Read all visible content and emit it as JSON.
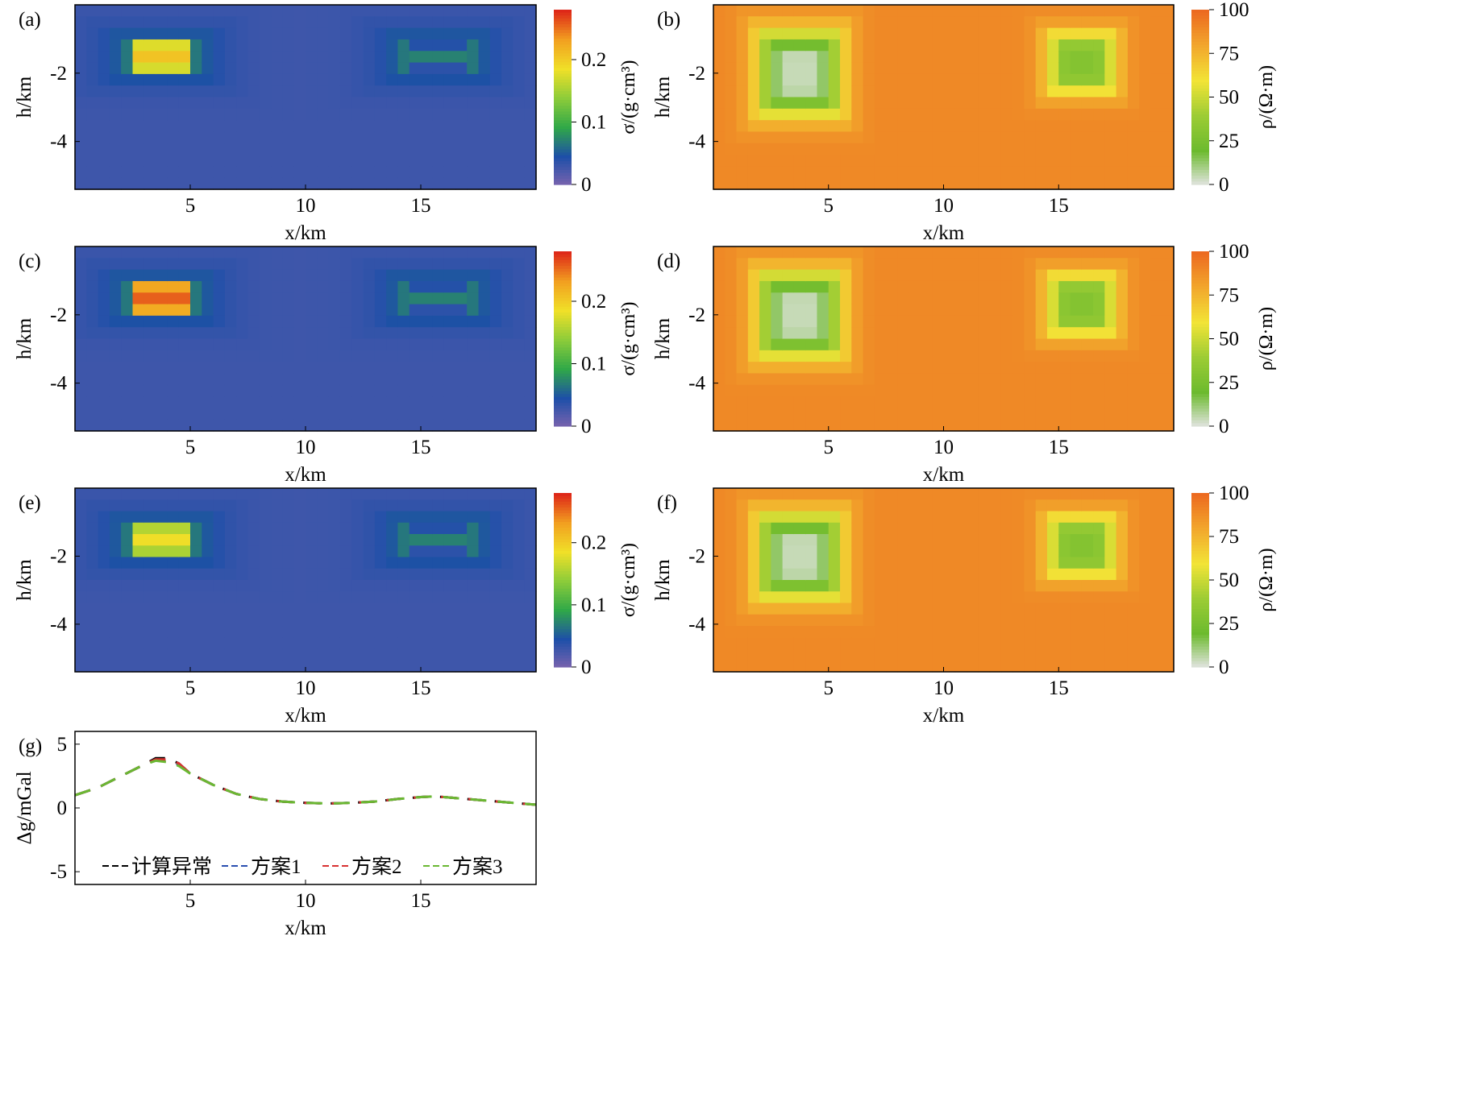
{
  "chart_data": [
    {
      "panel": "(a)",
      "type": "heatmap",
      "quantity": "density",
      "xlabel": "x/km",
      "ylabel": "h/km",
      "xlim": [
        0,
        20
      ],
      "ylim": [
        -5.4,
        0
      ],
      "xticks": [
        "5",
        "10",
        "15"
      ],
      "yticks": [
        "-2",
        "-4"
      ],
      "colorbar": {
        "label": "σ/(g·cm³)",
        "ticks": [
          "0",
          "0.1",
          "0.2"
        ],
        "range": [
          0,
          0.28
        ],
        "colors": [
          "#7a63ae",
          "#1d4fa8",
          "#30a848",
          "#8ccc3a",
          "#f0e028",
          "#f2a020",
          "#de2818"
        ]
      },
      "background": 0.03,
      "anomalies": [
        {
          "x": [
            2.5,
            5.0
          ],
          "z": [
            -1.9,
            -1.1
          ],
          "peak": 0.21,
          "halo": 0.05
        },
        {
          "x": [
            14.5,
            17.0
          ],
          "z": [
            -1.9,
            -1.1
          ],
          "peak": 0.075,
          "halo": 0.05
        }
      ]
    },
    {
      "panel": "(b)",
      "type": "heatmap",
      "quantity": "resistivity",
      "xlabel": "x/km",
      "ylabel": "h/km",
      "xlim": [
        0,
        20
      ],
      "ylim": [
        -5.4,
        0
      ],
      "xticks": [
        "5",
        "10",
        "15"
      ],
      "yticks": [
        "-2",
        "-4"
      ],
      "colorbar": {
        "label": "ρ/(Ω·m)",
        "ticks": [
          "0",
          "25",
          "50",
          "75",
          "100"
        ],
        "range": [
          0,
          100
        ],
        "colors": [
          "#e4e4e4",
          "#6cba2e",
          "#9ccc34",
          "#f2e436",
          "#f2a72c",
          "#ec6a20"
        ]
      },
      "background": 90,
      "anomalies": [
        {
          "x": [
            2.0,
            5.5
          ],
          "z": [
            -3.2,
            -0.8
          ],
          "low": 5
        },
        {
          "x": [
            14.5,
            17.5
          ],
          "z": [
            -2.6,
            -0.8
          ],
          "low": 30
        }
      ]
    },
    {
      "panel": "(c)",
      "type": "heatmap",
      "quantity": "density",
      "xlabel": "x/km",
      "ylabel": "h/km",
      "xlim": [
        0,
        20
      ],
      "ylim": [
        -5.4,
        0
      ],
      "xticks": [
        "5",
        "10",
        "15"
      ],
      "yticks": [
        "-2",
        "-4"
      ],
      "colorbar": {
        "label": "σ/(g·cm³)",
        "ticks": [
          "0",
          "0.1",
          "0.2"
        ],
        "range": [
          0,
          0.28
        ],
        "colors": [
          "#7a63ae",
          "#1d4fa8",
          "#30a848",
          "#8ccc3a",
          "#f0e028",
          "#f2a020",
          "#de2818"
        ]
      },
      "background": 0.03,
      "anomalies": [
        {
          "x": [
            2.5,
            5.0
          ],
          "z": [
            -1.9,
            -1.1
          ],
          "peak": 0.26,
          "halo": 0.05
        },
        {
          "x": [
            14.5,
            17.0
          ],
          "z": [
            -1.9,
            -1.1
          ],
          "peak": 0.075,
          "halo": 0.05
        }
      ]
    },
    {
      "panel": "(d)",
      "type": "heatmap",
      "quantity": "resistivity",
      "xlabel": "x/km",
      "ylabel": "h/km",
      "xlim": [
        0,
        20
      ],
      "ylim": [
        -5.4,
        0
      ],
      "xticks": [
        "5",
        "10",
        "15"
      ],
      "yticks": [
        "-2",
        "-4"
      ],
      "colorbar": {
        "label": "ρ/(Ω·m)",
        "ticks": [
          "0",
          "25",
          "50",
          "75",
          "100"
        ],
        "range": [
          0,
          100
        ],
        "colors": [
          "#e4e4e4",
          "#6cba2e",
          "#9ccc34",
          "#f2e436",
          "#f2a72c",
          "#ec6a20"
        ]
      },
      "background": 90,
      "anomalies": [
        {
          "x": [
            2.0,
            5.5
          ],
          "z": [
            -3.2,
            -0.8
          ],
          "low": 5
        },
        {
          "x": [
            14.5,
            17.5
          ],
          "z": [
            -2.6,
            -0.8
          ],
          "low": 30
        }
      ]
    },
    {
      "panel": "(e)",
      "type": "heatmap",
      "quantity": "density",
      "xlabel": "x/km",
      "ylabel": "h/km",
      "xlim": [
        0,
        20
      ],
      "ylim": [
        -5.4,
        0
      ],
      "xticks": [
        "5",
        "10",
        "15"
      ],
      "yticks": [
        "-2",
        "-4"
      ],
      "colorbar": {
        "label": "σ/(g·cm³)",
        "ticks": [
          "0",
          "0.1",
          "0.2"
        ],
        "range": [
          0,
          0.28
        ],
        "colors": [
          "#7a63ae",
          "#1d4fa8",
          "#30a848",
          "#8ccc3a",
          "#f0e028",
          "#f2a020",
          "#de2818"
        ]
      },
      "background": 0.03,
      "anomalies": [
        {
          "x": [
            2.5,
            5.0
          ],
          "z": [
            -1.9,
            -1.1
          ],
          "peak": 0.19,
          "halo": 0.05
        },
        {
          "x": [
            14.5,
            17.0
          ],
          "z": [
            -1.9,
            -1.1
          ],
          "peak": 0.075,
          "halo": 0.05
        }
      ]
    },
    {
      "panel": "(f)",
      "type": "heatmap",
      "quantity": "resistivity",
      "xlabel": "x/km",
      "ylabel": "h/km",
      "xlim": [
        0,
        20
      ],
      "ylim": [
        -5.4,
        0
      ],
      "xticks": [
        "5",
        "10",
        "15"
      ],
      "yticks": [
        "-2",
        "-4"
      ],
      "colorbar": {
        "label": "ρ/(Ω·m)",
        "ticks": [
          "0",
          "25",
          "50",
          "75",
          "100"
        ],
        "range": [
          0,
          100
        ],
        "colors": [
          "#e4e4e4",
          "#6cba2e",
          "#9ccc34",
          "#f2e436",
          "#f2a72c",
          "#ec6a20"
        ]
      },
      "background": 90,
      "anomalies": [
        {
          "x": [
            2.0,
            5.5
          ],
          "z": [
            -3.2,
            -0.8
          ],
          "low": 5
        },
        {
          "x": [
            14.5,
            17.5
          ],
          "z": [
            -2.6,
            -0.8
          ],
          "low": 30
        }
      ]
    },
    {
      "panel": "(g)",
      "type": "line",
      "xlabel": "x/km",
      "ylabel": "Δg/mGal",
      "xlim": [
        0,
        20
      ],
      "ylim": [
        -6,
        6
      ],
      "xticks": [
        "5",
        "10",
        "15"
      ],
      "yticks": [
        "5",
        "0",
        "-5"
      ],
      "legend_position": "bottom",
      "x": [
        0,
        1,
        2,
        3,
        3.5,
        4,
        4.5,
        5,
        6,
        7,
        8,
        9,
        10,
        11,
        12,
        13,
        14,
        15,
        15.5,
        16,
        17,
        18,
        19,
        20
      ],
      "series": [
        {
          "name": "计算异常",
          "color": "#000000",
          "values": [
            1.0,
            1.6,
            2.5,
            3.4,
            3.9,
            3.9,
            3.5,
            2.7,
            1.8,
            1.1,
            0.7,
            0.5,
            0.4,
            0.35,
            0.4,
            0.5,
            0.7,
            0.85,
            0.9,
            0.85,
            0.7,
            0.55,
            0.4,
            0.25
          ]
        },
        {
          "name": "方案1",
          "color": "#2a4fb0",
          "values": [
            1.0,
            1.6,
            2.5,
            3.4,
            3.8,
            3.7,
            3.4,
            2.7,
            1.8,
            1.1,
            0.7,
            0.5,
            0.4,
            0.35,
            0.4,
            0.5,
            0.7,
            0.85,
            0.9,
            0.85,
            0.7,
            0.55,
            0.4,
            0.25
          ]
        },
        {
          "name": "方案2",
          "color": "#d83030",
          "values": [
            1.0,
            1.6,
            2.5,
            3.4,
            3.8,
            3.8,
            3.5,
            2.7,
            1.8,
            1.1,
            0.7,
            0.5,
            0.4,
            0.35,
            0.4,
            0.5,
            0.7,
            0.85,
            0.9,
            0.85,
            0.7,
            0.55,
            0.4,
            0.25
          ]
        },
        {
          "name": "方案3",
          "color": "#6ab832",
          "values": [
            1.0,
            1.6,
            2.5,
            3.4,
            3.7,
            3.6,
            3.3,
            2.7,
            1.8,
            1.1,
            0.7,
            0.5,
            0.4,
            0.35,
            0.4,
            0.5,
            0.7,
            0.85,
            0.9,
            0.85,
            0.7,
            0.55,
            0.4,
            0.25
          ]
        }
      ]
    }
  ]
}
